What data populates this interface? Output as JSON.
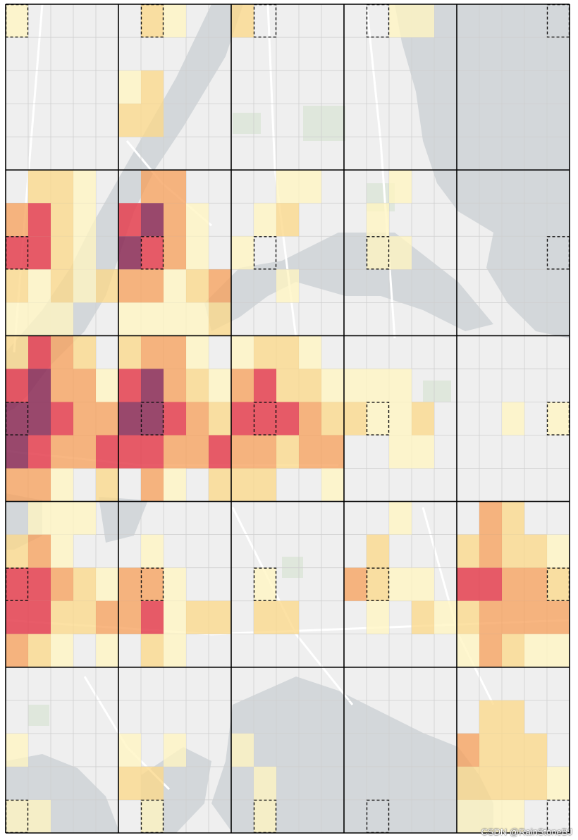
{
  "map": {
    "region_rows": 5,
    "region_cols": 5,
    "cells_per_region_side": 5,
    "base_map": {
      "land_color": "#efefef",
      "water_color": "#d3d7da",
      "road_color": "#ffffff",
      "park_color": "#dfe7dc",
      "grid_line_color": "#000000",
      "minor_grid_color": "#cfcfcf"
    },
    "heat_colors": [
      "#fff5c2",
      "#fbd98a",
      "#f6a25e",
      "#e4404f",
      "#8a2a55"
    ],
    "heat_level_note": "levels 0-5, 0 = no fill",
    "heat_grid": [
      [
        1,
        0,
        0,
        0,
        0,
        0,
        2,
        1,
        0,
        0,
        2,
        0,
        0,
        0,
        0,
        0,
        0,
        1,
        1,
        0,
        0,
        0,
        0,
        0,
        0
      ],
      [
        0,
        0,
        0,
        0,
        0,
        0,
        0,
        0,
        0,
        0,
        0,
        0,
        0,
        0,
        0,
        0,
        0,
        0,
        0,
        0,
        0,
        0,
        0,
        0,
        0
      ],
      [
        0,
        0,
        0,
        0,
        0,
        1,
        2,
        0,
        0,
        0,
        0,
        0,
        0,
        0,
        0,
        0,
        0,
        0,
        0,
        0,
        0,
        0,
        0,
        0,
        0
      ],
      [
        0,
        0,
        0,
        0,
        0,
        2,
        2,
        0,
        0,
        0,
        0,
        0,
        0,
        0,
        0,
        0,
        0,
        0,
        0,
        0,
        0,
        0,
        0,
        0,
        0
      ],
      [
        0,
        0,
        0,
        0,
        0,
        0,
        0,
        0,
        0,
        0,
        0,
        0,
        0,
        0,
        0,
        0,
        0,
        0,
        0,
        0,
        0,
        0,
        0,
        0,
        0
      ],
      [
        0,
        2,
        2,
        1,
        0,
        0,
        3,
        3,
        0,
        0,
        0,
        0,
        1,
        1,
        0,
        0,
        0,
        1,
        0,
        0,
        0,
        0,
        0,
        0,
        0
      ],
      [
        3,
        4,
        2,
        1,
        0,
        4,
        5,
        3,
        1,
        0,
        0,
        1,
        2,
        0,
        0,
        0,
        1,
        0,
        0,
        0,
        0,
        0,
        0,
        0,
        0
      ],
      [
        4,
        4,
        2,
        1,
        0,
        5,
        4,
        3,
        1,
        0,
        1,
        0,
        0,
        0,
        0,
        0,
        1,
        1,
        0,
        0,
        0,
        0,
        0,
        0,
        0
      ],
      [
        2,
        1,
        2,
        1,
        2,
        3,
        3,
        1,
        2,
        3,
        0,
        0,
        1,
        0,
        0,
        0,
        0,
        0,
        0,
        0,
        0,
        0,
        0,
        0,
        0
      ],
      [
        1,
        1,
        1,
        0,
        0,
        1,
        1,
        1,
        1,
        2,
        0,
        0,
        0,
        0,
        0,
        0,
        0,
        0,
        0,
        0,
        0,
        0,
        0,
        0,
        0
      ],
      [
        2,
        4,
        3,
        2,
        0,
        2,
        3,
        3,
        1,
        0,
        1,
        2,
        2,
        1,
        0,
        0,
        0,
        0,
        0,
        0,
        0,
        0,
        0,
        0,
        0
      ],
      [
        4,
        5,
        3,
        3,
        1,
        4,
        5,
        3,
        2,
        1,
        3,
        4,
        2,
        2,
        1,
        1,
        1,
        1,
        0,
        0,
        0,
        0,
        0,
        0,
        0
      ],
      [
        5,
        5,
        4,
        3,
        3,
        5,
        5,
        4,
        3,
        2,
        4,
        4,
        4,
        3,
        2,
        2,
        1,
        1,
        2,
        0,
        0,
        0,
        1,
        0,
        1
      ],
      [
        5,
        4,
        3,
        3,
        4,
        4,
        4,
        3,
        3,
        4,
        3,
        3,
        2,
        3,
        3,
        0,
        0,
        1,
        1,
        0,
        0,
        0,
        0,
        0,
        0
      ],
      [
        3,
        3,
        1,
        0,
        2,
        0,
        3,
        1,
        0,
        2,
        2,
        2,
        0,
        0,
        1,
        0,
        0,
        0,
        0,
        0,
        0,
        0,
        0,
        0,
        0
      ],
      [
        0,
        1,
        1,
        1,
        0,
        0,
        0,
        0,
        0,
        0,
        0,
        0,
        0,
        0,
        0,
        0,
        0,
        1,
        0,
        0,
        0,
        3,
        2,
        0,
        0
      ],
      [
        2,
        3,
        1,
        0,
        0,
        0,
        1,
        0,
        0,
        0,
        0,
        0,
        0,
        0,
        0,
        0,
        2,
        0,
        0,
        0,
        2,
        3,
        2,
        2,
        1
      ],
      [
        4,
        4,
        3,
        2,
        1,
        3,
        3,
        1,
        0,
        0,
        0,
        1,
        0,
        0,
        0,
        3,
        2,
        1,
        1,
        0,
        4,
        4,
        3,
        3,
        2
      ],
      [
        4,
        4,
        2,
        2,
        3,
        3,
        4,
        1,
        2,
        2,
        0,
        2,
        2,
        0,
        0,
        0,
        1,
        0,
        2,
        1,
        2,
        3,
        3,
        3,
        3
      ],
      [
        3,
        2,
        1,
        0,
        1,
        0,
        2,
        1,
        0,
        0,
        0,
        0,
        0,
        0,
        0,
        0,
        0,
        0,
        0,
        0,
        1,
        3,
        2,
        1,
        1
      ],
      [
        0,
        0,
        0,
        0,
        0,
        0,
        0,
        0,
        0,
        0,
        0,
        0,
        0,
        0,
        0,
        0,
        0,
        0,
        0,
        0,
        0,
        0,
        0,
        0,
        0
      ],
      [
        0,
        0,
        0,
        0,
        0,
        0,
        0,
        0,
        0,
        0,
        0,
        0,
        0,
        0,
        0,
        0,
        0,
        0,
        0,
        0,
        0,
        2,
        2,
        0,
        0
      ],
      [
        1,
        0,
        0,
        0,
        0,
        1,
        0,
        1,
        0,
        0,
        1,
        0,
        0,
        0,
        0,
        0,
        0,
        0,
        0,
        0,
        3,
        2,
        2,
        2,
        0
      ],
      [
        0,
        0,
        0,
        0,
        0,
        2,
        2,
        0,
        0,
        0,
        0,
        1,
        0,
        0,
        0,
        0,
        0,
        0,
        0,
        0,
        2,
        2,
        2,
        2,
        1
      ],
      [
        1,
        1,
        0,
        0,
        0,
        0,
        1,
        0,
        0,
        0,
        0,
        1,
        0,
        0,
        0,
        0,
        0,
        0,
        0,
        0,
        1,
        1,
        1,
        0,
        0
      ]
    ],
    "target_cell_in_region": {
      "row": "varies",
      "note": "dashed box per region"
    },
    "dashed_targets": [
      [
        [
          0,
          0
        ],
        [
          0,
          1
        ],
        [
          0,
          1
        ],
        [
          0,
          1
        ],
        [
          0,
          4
        ]
      ],
      [
        [
          1,
          0
        ],
        [
          1,
          1
        ],
        [
          1,
          2
        ],
        [
          1,
          3
        ],
        [
          1,
          4
        ]
      ],
      [
        [
          2,
          0
        ],
        [
          2,
          1
        ],
        [
          2,
          2
        ],
        [
          2,
          3
        ],
        [
          2,
          4
        ]
      ],
      [
        [
          3,
          0
        ],
        [
          3,
          1
        ],
        [
          3,
          2
        ],
        [
          3,
          3
        ],
        [
          3,
          4
        ]
      ],
      [
        [
          4,
          0
        ],
        [
          4,
          1
        ],
        [
          4,
          2
        ],
        [
          4,
          3
        ],
        [
          4,
          4
        ]
      ]
    ]
  },
  "watermark": "CSDN @RainStoneBJ"
}
